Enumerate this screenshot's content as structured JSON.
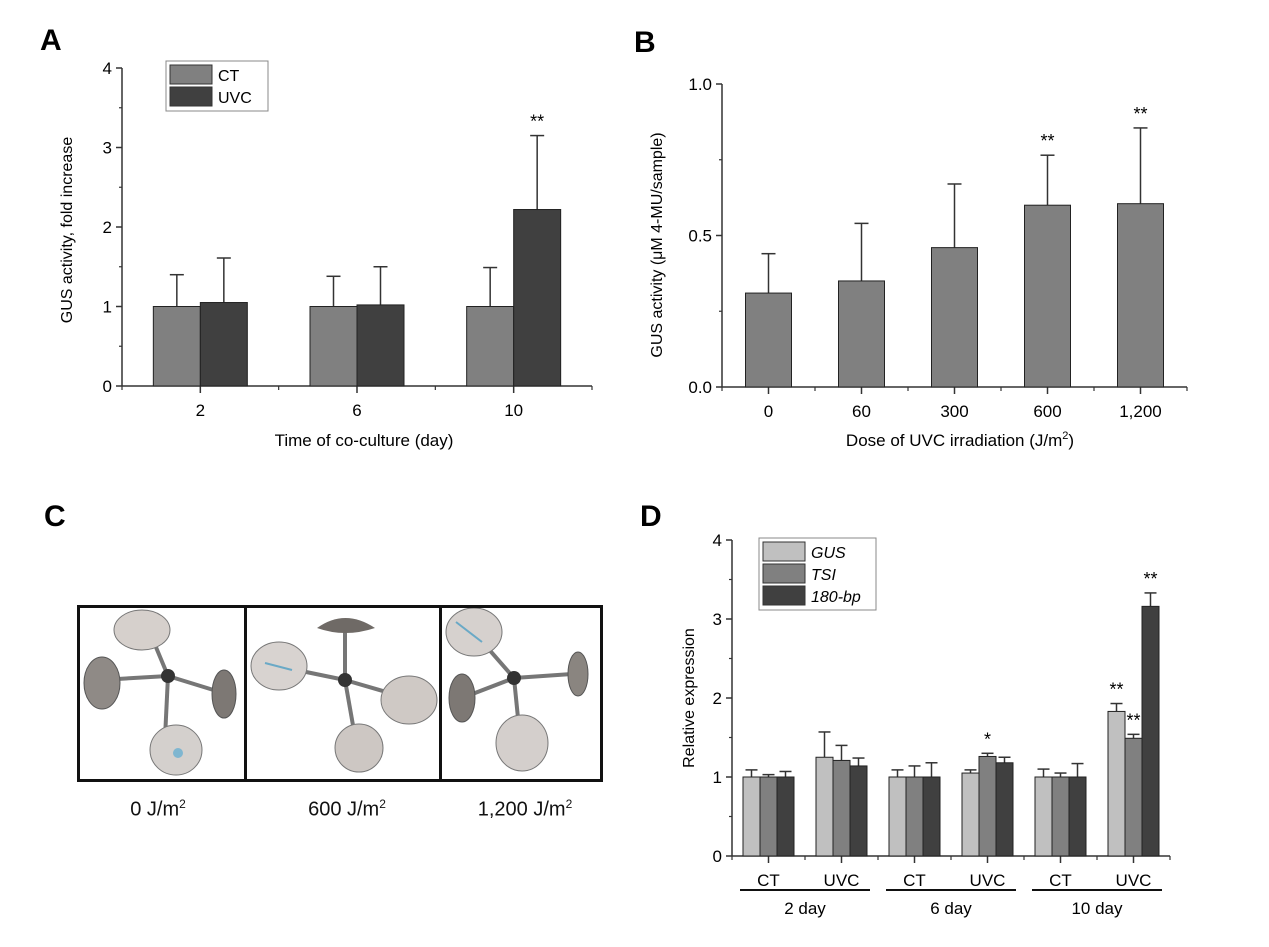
{
  "panels": {
    "A": {
      "letter": "A"
    },
    "B": {
      "letter": "B"
    },
    "C": {
      "letter": "C",
      "images": [
        {
          "label_main": "0 J/m",
          "label_sup": "2",
          "desc": "GUS-stained seedling, 0 J/m2"
        },
        {
          "label_main": "600 J/m",
          "label_sup": "2",
          "desc": "GUS-stained seedling, 600 J/m2"
        },
        {
          "label_main": "1,200 J/m",
          "label_sup": "2",
          "desc": "GUS-stained seedling, 1,200 J/m2"
        }
      ]
    },
    "D": {
      "letter": "D"
    }
  },
  "colors": {
    "light": "#c0c0c0",
    "mid": "#808080",
    "dark": "#404040",
    "axis": "#333333"
  },
  "chart_data": [
    {
      "id": "A",
      "type": "bar",
      "title": "",
      "xlabel": "Time of co-culture (day)",
      "ylabel": "GUS activity, fold increase",
      "categories": [
        "2",
        "6",
        "10"
      ],
      "ylim": [
        0,
        4
      ],
      "yticks": [
        "0",
        "1",
        "2",
        "3",
        "4"
      ],
      "legend": {
        "position": "top-left",
        "entries": [
          "CT",
          "UVC"
        ]
      },
      "series": [
        {
          "name": "CT",
          "values": [
            1.0,
            1.0,
            1.0
          ],
          "errors": [
            0.4,
            0.38,
            0.49
          ],
          "color": "#808080"
        },
        {
          "name": "UVC",
          "values": [
            1.05,
            1.02,
            2.22
          ],
          "errors": [
            0.56,
            0.48,
            0.93
          ],
          "color": "#404040"
        }
      ],
      "annotations": [
        {
          "series": 1,
          "category": 2,
          "text": "**"
        }
      ]
    },
    {
      "id": "B",
      "type": "bar",
      "title": "",
      "xlabel": "Dose of UVC irradiation (J/m²)",
      "ylabel": "GUS activity (μM 4-MU/sample)",
      "categories": [
        "0",
        "60",
        "300",
        "600",
        "1,200"
      ],
      "ylim": [
        0,
        1.0
      ],
      "yticks": [
        "0.0",
        "0.5",
        "1.0"
      ],
      "series": [
        {
          "name": "GUS activity",
          "values": [
            0.31,
            0.35,
            0.46,
            0.6,
            0.605
          ],
          "errors": [
            0.13,
            0.19,
            0.21,
            0.165,
            0.25
          ],
          "color": "#808080"
        }
      ],
      "annotations": [
        {
          "category": 3,
          "text": "**"
        },
        {
          "category": 4,
          "text": "**"
        }
      ]
    },
    {
      "id": "D",
      "type": "bar",
      "title": "",
      "xlabel": "",
      "ylabel": "Relative expression",
      "categories": [
        "CT",
        "UVC",
        "CT",
        "UVC",
        "CT",
        "UVC"
      ],
      "groups": [
        {
          "label": "2 day",
          "span": [
            0,
            1
          ]
        },
        {
          "label": "6 day",
          "span": [
            2,
            3
          ]
        },
        {
          "label": "10 day",
          "span": [
            4,
            5
          ]
        }
      ],
      "ylim": [
        0,
        4
      ],
      "yticks": [
        "0",
        "1",
        "2",
        "3",
        "4"
      ],
      "legend": {
        "position": "top-left",
        "entries": [
          "GUS",
          "TSI",
          "180-bp"
        ]
      },
      "series": [
        {
          "name": "GUS",
          "values": [
            1.0,
            1.25,
            1.0,
            1.05,
            1.0,
            1.83
          ],
          "errors": [
            0.09,
            0.32,
            0.09,
            0.04,
            0.1,
            0.1
          ],
          "color": "#c0c0c0"
        },
        {
          "name": "TSI",
          "values": [
            1.0,
            1.21,
            1.0,
            1.26,
            1.0,
            1.49
          ],
          "errors": [
            0.03,
            0.19,
            0.14,
            0.04,
            0.05,
            0.05
          ],
          "color": "#808080"
        },
        {
          "name": "180-bp",
          "values": [
            1.0,
            1.14,
            1.0,
            1.18,
            1.0,
            3.16
          ],
          "errors": [
            0.07,
            0.1,
            0.18,
            0.07,
            0.17,
            0.17
          ],
          "color": "#404040"
        }
      ],
      "annotations": [
        {
          "series": 1,
          "category": 3,
          "text": "*"
        },
        {
          "series": 0,
          "category": 5,
          "text": "**"
        },
        {
          "series": 1,
          "category": 5,
          "text": "**"
        },
        {
          "series": 2,
          "category": 5,
          "text": "**"
        }
      ]
    }
  ]
}
